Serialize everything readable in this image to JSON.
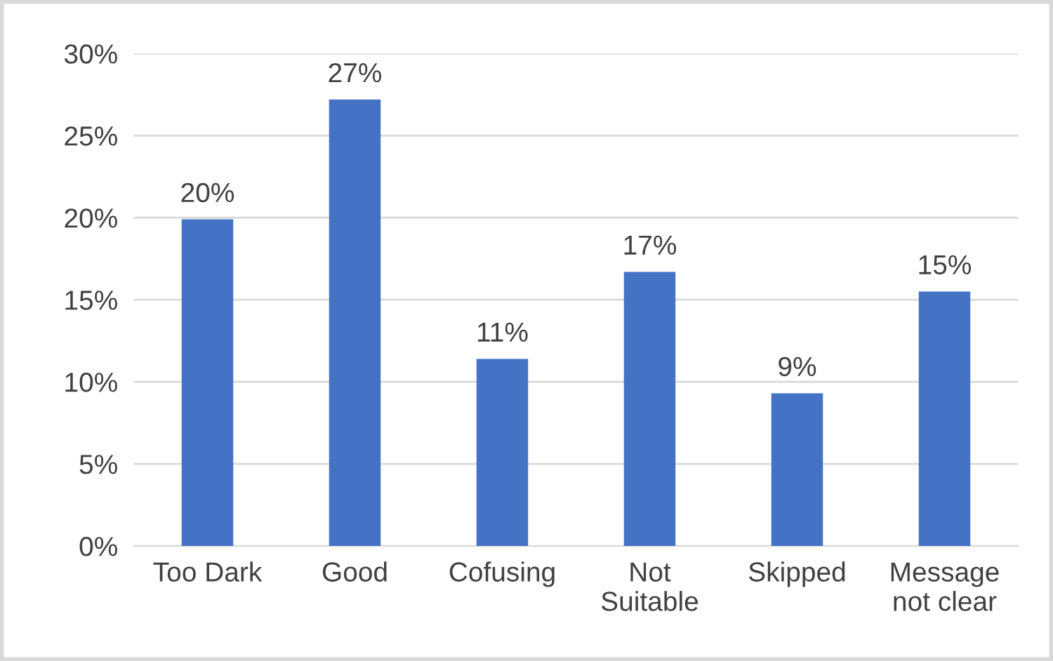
{
  "chart_data": {
    "type": "bar",
    "categories": [
      "Too Dark",
      "Good",
      "Cofusing",
      "Not\nSuitable",
      "Skipped",
      "Message\nnot clear"
    ],
    "values": [
      19.9,
      27.2,
      11.4,
      16.7,
      9.3,
      15.5
    ],
    "value_labels": [
      "20%",
      "27%",
      "11%",
      "17%",
      "9%",
      "15%"
    ],
    "color": "#4472c4",
    "ylim": [
      0,
      30
    ],
    "yticks": [
      {
        "value": 0,
        "label": "0%"
      },
      {
        "value": 5,
        "label": "5%"
      },
      {
        "value": 10,
        "label": "10%"
      },
      {
        "value": 15,
        "label": "15%"
      },
      {
        "value": 20,
        "label": "20%"
      },
      {
        "value": 25,
        "label": "25%"
      },
      {
        "value": 30,
        "label": "30%"
      }
    ],
    "grid": "y"
  }
}
